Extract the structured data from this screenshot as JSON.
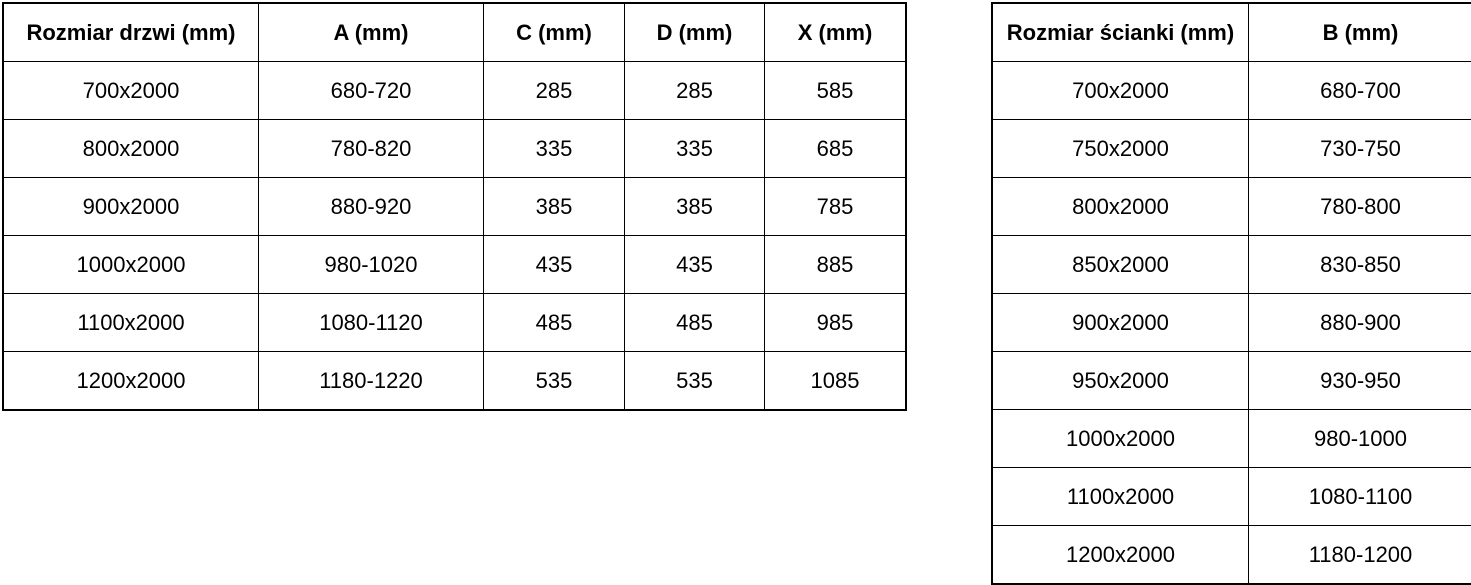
{
  "colors": {
    "border": "#000000",
    "text": "#000000",
    "background": "#ffffff"
  },
  "door_table": {
    "headers": [
      "Rozmiar drzwi (mm)",
      "A (mm)",
      "C (mm)",
      "D (mm)",
      "X (mm)"
    ],
    "rows": [
      [
        "700x2000",
        "680-720",
        "285",
        "285",
        "585"
      ],
      [
        "800x2000",
        "780-820",
        "335",
        "335",
        "685"
      ],
      [
        "900x2000",
        "880-920",
        "385",
        "385",
        "785"
      ],
      [
        "1000x2000",
        "980-1020",
        "435",
        "435",
        "885"
      ],
      [
        "1100x2000",
        "1080-1120",
        "485",
        "485",
        "985"
      ],
      [
        "1200x2000",
        "1180-1220",
        "535",
        "535",
        "1085"
      ]
    ]
  },
  "wall_table": {
    "headers": [
      "Rozmiar ścianki (mm)",
      "B (mm)"
    ],
    "rows": [
      [
        "700x2000",
        "680-700"
      ],
      [
        "750x2000",
        "730-750"
      ],
      [
        "800x2000",
        "780-800"
      ],
      [
        "850x2000",
        "830-850"
      ],
      [
        "900x2000",
        "880-900"
      ],
      [
        "950x2000",
        "930-950"
      ],
      [
        "1000x2000",
        "980-1000"
      ],
      [
        "1100x2000",
        "1080-1100"
      ],
      [
        "1200x2000",
        "1180-1200"
      ]
    ]
  }
}
